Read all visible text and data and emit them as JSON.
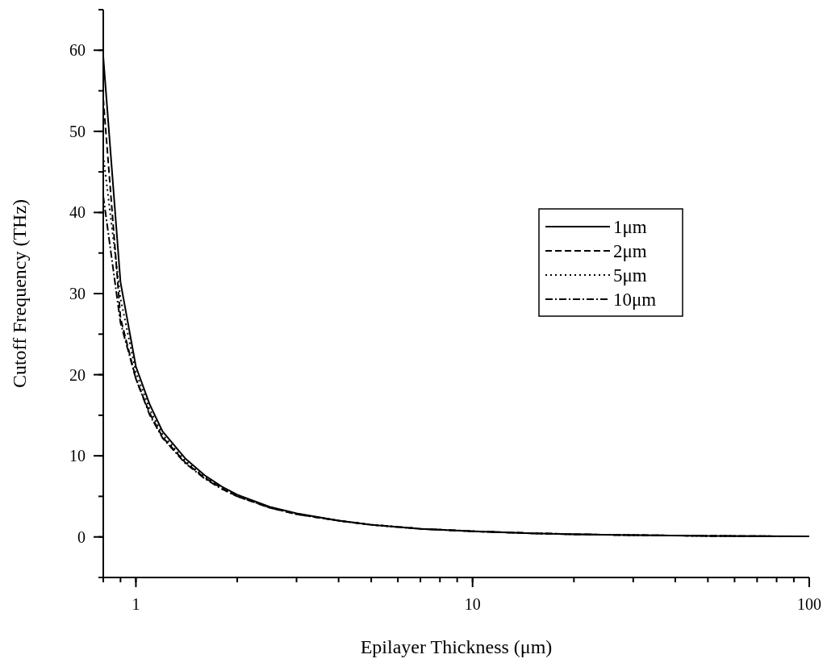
{
  "chart_data": {
    "type": "line",
    "xlabel": "Epilayer Thickness (μm)",
    "ylabel": "Cutoff Frequency (THz)",
    "x": [
      0.8,
      0.9,
      1,
      1.1,
      1.2,
      1.4,
      1.6,
      1.8,
      2,
      2.5,
      3,
      4,
      5,
      7,
      10,
      15,
      20,
      30,
      50,
      70,
      100
    ],
    "series": [
      {
        "name": "1μm",
        "color": "#000000",
        "line_style": "solid",
        "values": [
          59.2,
          31.4,
          21,
          16.3,
          13,
          9.7,
          7.6,
          6.2,
          5.2,
          3.7,
          2.9,
          2,
          1.5,
          1,
          0.7,
          0.45,
          0.33,
          0.22,
          0.13,
          0.09,
          0.06
        ]
      },
      {
        "name": "2μm",
        "color": "#000000",
        "line_style": "dashed",
        "values": [
          54,
          27,
          19.5,
          15.2,
          12.3,
          9.2,
          7.3,
          6,
          5,
          3.6,
          2.8,
          2,
          1.5,
          1,
          0.7,
          0.45,
          0.33,
          0.22,
          0.13,
          0.09,
          0.06
        ]
      },
      {
        "name": "5μm",
        "color": "#000000",
        "line_style": "dotted",
        "values": [
          47,
          29.4,
          20.3,
          15.7,
          12.6,
          9.4,
          7.4,
          6.1,
          5.1,
          3.65,
          2.85,
          2,
          1.5,
          1,
          0.7,
          0.45,
          0.33,
          0.22,
          0.13,
          0.09,
          0.06
        ]
      },
      {
        "name": "10μm",
        "color": "#000000",
        "line_style": "dashdot",
        "values": [
          42,
          26.4,
          19.5,
          15,
          12.2,
          9.1,
          7.2,
          5.9,
          5,
          3.6,
          2.8,
          2,
          1.5,
          1,
          0.7,
          0.45,
          0.33,
          0.22,
          0.13,
          0.09,
          0.06
        ]
      }
    ],
    "log": "x",
    "xlim": [
      0.8,
      100
    ],
    "xticks": [
      1,
      10,
      100
    ],
    "ylim": [
      -5,
      65
    ],
    "yticks": [
      0,
      10,
      20,
      30,
      40,
      50,
      60
    ],
    "legend": "right",
    "grid": false,
    "marker": "none"
  }
}
